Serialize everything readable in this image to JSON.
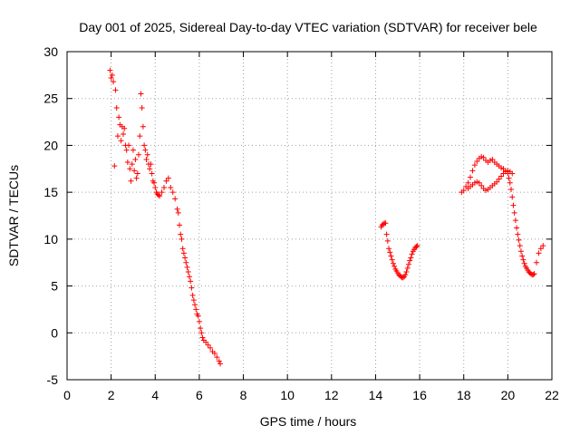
{
  "chart_data": {
    "type": "scatter",
    "title": "Day 001 of 2025, Sidereal Day-to-day VTEC variation (SDTVAR) for receiver bele",
    "xlabel": "GPS time / hours",
    "ylabel": "SDTVAR / TECUs",
    "xlim": [
      0,
      22
    ],
    "ylim": [
      -5,
      30
    ],
    "xticks": [
      0,
      2,
      4,
      6,
      8,
      10,
      12,
      14,
      16,
      18,
      20,
      22
    ],
    "yticks": [
      -5,
      0,
      5,
      10,
      15,
      20,
      25,
      30
    ],
    "grid": true,
    "marker": "+",
    "series": [
      {
        "name": "SDTVAR",
        "color": "#ff0000",
        "segments": [
          {
            "x": [
              1.95,
              2.0,
              2.05,
              2.1,
              2.15,
              2.2,
              2.25,
              2.3,
              2.35,
              2.4,
              2.45,
              2.5,
              2.55,
              2.6,
              2.65,
              2.7,
              2.75,
              2.8,
              2.85,
              2.9,
              2.95,
              3.0,
              3.05,
              3.1,
              3.15,
              3.2,
              3.25,
              3.3,
              3.35,
              3.4,
              3.45,
              3.5,
              3.55,
              3.6,
              3.65,
              3.7,
              3.75,
              3.8,
              3.85,
              3.9,
              3.95,
              4.0,
              4.05,
              4.1,
              4.15,
              4.2,
              4.3,
              4.4,
              4.5,
              4.6,
              4.7,
              4.8,
              4.9,
              5.0,
              5.05,
              5.1,
              5.15,
              5.2,
              5.25,
              5.3,
              5.35,
              5.4,
              5.45,
              5.5,
              5.55,
              5.6,
              5.65,
              5.7,
              5.75,
              5.8,
              5.85,
              5.9,
              5.95,
              6.0,
              6.05,
              6.1,
              6.15,
              6.2,
              6.3,
              6.4,
              6.5,
              6.6,
              6.7,
              6.8,
              6.9,
              6.95
            ],
            "y": [
              28.0,
              27.2,
              27.5,
              26.8,
              17.8,
              25.9,
              24.0,
              21.0,
              23.0,
              22.2,
              20.5,
              22.0,
              21.2,
              21.8,
              20.0,
              19.5,
              18.2,
              20.0,
              17.5,
              16.2,
              18.0,
              19.5,
              17.3,
              18.5,
              16.5,
              17.0,
              19.0,
              21.0,
              25.5,
              24.0,
              22.0,
              20.0,
              19.5,
              18.5,
              19.0,
              18.0,
              17.5,
              18.0,
              17.0,
              16.2,
              16.0,
              15.5,
              15.0,
              14.8,
              14.7,
              14.6,
              15.0,
              15.5,
              16.2,
              16.5,
              15.5,
              15.0,
              14.3,
              13.2,
              12.8,
              11.5,
              10.5,
              10.0,
              9.0,
              8.5,
              8.0,
              7.5,
              7.0,
              6.5,
              6.0,
              5.5,
              4.8,
              4.0,
              3.5,
              3.0,
              2.5,
              2.0,
              1.8,
              1.2,
              0.5,
              0.0,
              -0.5,
              -0.8,
              -1.0,
              -1.3,
              -1.6,
              -2.0,
              -2.2,
              -2.6,
              -3.0,
              -3.3
            ]
          },
          {
            "x": [
              14.25,
              14.3,
              14.35,
              14.4,
              14.45,
              14.5,
              14.55,
              14.6,
              14.65,
              14.7,
              14.75,
              14.8,
              14.85,
              14.9,
              14.95,
              15.0,
              15.05,
              15.1,
              15.15,
              15.2,
              15.25,
              15.3,
              15.35,
              15.4,
              15.45,
              15.5,
              15.55,
              15.6,
              15.65,
              15.7,
              15.75,
              15.8,
              15.85,
              15.9
            ],
            "y": [
              11.3,
              11.5,
              11.6,
              11.7,
              11.7,
              10.5,
              9.8,
              9.0,
              8.6,
              8.2,
              7.8,
              7.4,
              7.1,
              6.8,
              6.6,
              6.4,
              6.2,
              6.1,
              6.0,
              5.9,
              5.9,
              6.0,
              6.2,
              6.5,
              6.9,
              7.3,
              7.7,
              8.0,
              8.4,
              8.7,
              8.9,
              9.1,
              9.2,
              9.3
            ]
          },
          {
            "x": [
              17.9,
              18.0,
              18.1,
              18.2,
              18.3,
              18.4,
              18.5,
              18.6,
              18.7,
              18.8,
              18.9,
              19.0,
              19.1,
              19.2,
              19.3,
              19.4,
              19.5,
              19.6,
              19.7,
              19.8,
              19.9,
              20.0,
              20.05,
              20.1,
              20.15,
              20.2,
              20.25,
              20.3,
              20.35,
              20.4,
              20.45,
              20.5,
              20.55,
              20.6,
              20.65,
              20.7,
              20.75,
              20.8,
              20.85,
              20.9,
              20.95,
              21.0,
              21.05,
              21.1,
              21.15,
              21.2,
              21.3,
              21.4,
              21.5,
              21.6
            ],
            "y": [
              15.0,
              15.2,
              15.6,
              16.0,
              16.6,
              17.3,
              17.9,
              18.3,
              18.6,
              18.8,
              18.7,
              18.4,
              18.2,
              18.4,
              18.5,
              18.2,
              18.0,
              17.8,
              17.6,
              17.5,
              17.3,
              17.0,
              16.5,
              16.0,
              15.3,
              14.5,
              13.6,
              12.8,
              12.0,
              11.2,
              10.5,
              9.9,
              9.3,
              8.7,
              8.2,
              7.8,
              7.4,
              7.1,
              6.9,
              6.7,
              6.5,
              6.4,
              6.3,
              6.2,
              6.2,
              6.3,
              7.5,
              8.5,
              9.0,
              9.3
            ]
          },
          {
            "x": [
              18.2,
              18.3,
              18.4,
              18.5,
              18.6,
              18.7,
              18.8,
              18.9,
              19.0,
              19.1,
              19.2,
              19.3,
              19.4,
              19.5,
              19.6,
              19.7,
              19.8,
              19.9,
              20.0,
              20.1,
              20.2
            ],
            "y": [
              15.4,
              15.6,
              15.8,
              16.0,
              16.1,
              16.0,
              15.7,
              15.4,
              15.2,
              15.3,
              15.5,
              15.7,
              15.9,
              16.1,
              16.4,
              16.7,
              17.0,
              17.2,
              17.3,
              17.2,
              17.0
            ]
          }
        ]
      }
    ]
  }
}
